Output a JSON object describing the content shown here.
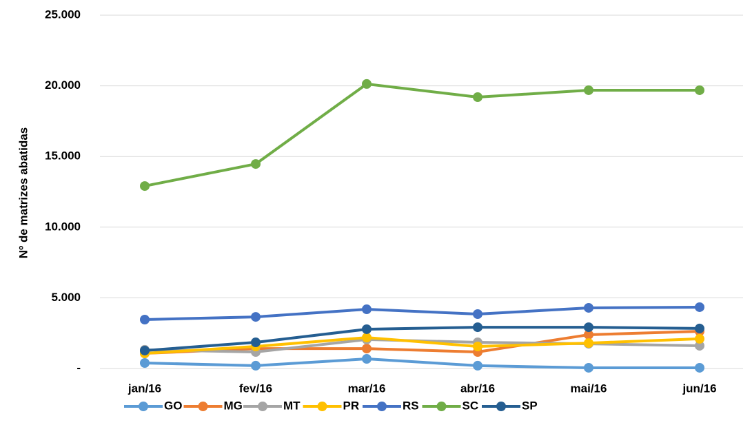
{
  "chart_data": {
    "type": "line",
    "y_label": "Nº de matrizes abatidas",
    "categories": [
      "jan/16",
      "fev/16",
      "mar/16",
      "abr/16",
      "mai/16",
      "jun/16"
    ],
    "ylim": [
      0,
      25000
    ],
    "yticks": [
      {
        "value": 0,
        "label": "-"
      },
      {
        "value": 5000,
        "label": "5.000"
      },
      {
        "value": 10000,
        "label": "10.000"
      },
      {
        "value": 15000,
        "label": "15.000"
      },
      {
        "value": 20000,
        "label": "20.000"
      },
      {
        "value": 25000,
        "label": "25.000"
      }
    ],
    "grid": true,
    "legend": "bottom",
    "series": [
      {
        "name": "GO",
        "color": "#5b9bd5",
        "values": [
          390,
          200,
          680,
          200,
          50,
          50
        ]
      },
      {
        "name": "MG",
        "color": "#ed7d31",
        "values": [
          1070,
          1410,
          1410,
          1170,
          2390,
          2630
        ]
      },
      {
        "name": "MT",
        "color": "#a5a5a5",
        "values": [
          1320,
          1170,
          2050,
          1850,
          1750,
          1610
        ]
      },
      {
        "name": "PR",
        "color": "#ffc000",
        "values": [
          1070,
          1560,
          2190,
          1560,
          1800,
          2100
        ]
      },
      {
        "name": "RS",
        "color": "#4472c4",
        "values": [
          3460,
          3650,
          4190,
          3850,
          4290,
          4340
        ]
      },
      {
        "name": "SC",
        "color": "#70ad47",
        "values": [
          12910,
          14470,
          20130,
          19200,
          19690,
          19690
        ]
      },
      {
        "name": "SP",
        "color": "#255e91",
        "values": [
          1270,
          1850,
          2780,
          2920,
          2920,
          2830
        ]
      }
    ]
  }
}
